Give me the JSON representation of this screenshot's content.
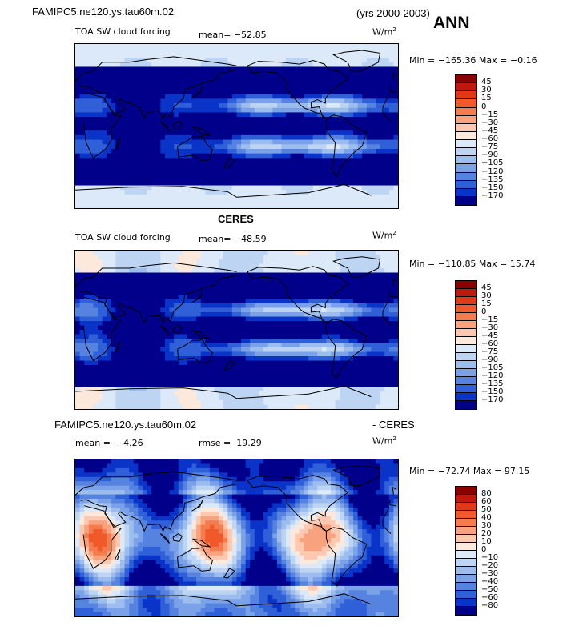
{
  "header": {
    "case_name": "FAMIPC5.ne120.ys.tau60m.02",
    "years": "(yrs 2000-2003)",
    "season": "ANN"
  },
  "panels": [
    {
      "id": "model",
      "title": "",
      "variable": "TOA SW cloud forcing",
      "mean_label": "mean=",
      "mean_value": "−52.85",
      "units": "W/m",
      "units_sup": "2",
      "minmax": "Min = −165.36 Max =  −0.16",
      "levels": [
        "45",
        "30",
        "15",
        "0",
        "−15",
        "−30",
        "−45",
        "−60",
        "−75",
        "−90",
        "−105",
        "−120",
        "−135",
        "−150",
        "−170"
      ]
    },
    {
      "id": "obs",
      "title": "CERES",
      "variable": "TOA SW cloud forcing",
      "mean_label": "mean=",
      "mean_value": "−48.59",
      "units": "W/m",
      "units_sup": "2",
      "minmax": "Min = −110.85 Max =  15.74",
      "levels": [
        "45",
        "30",
        "15",
        "0",
        "−15",
        "−30",
        "−45",
        "−60",
        "−75",
        "−90",
        "−105",
        "−120",
        "−135",
        "−150",
        "−170"
      ]
    },
    {
      "id": "diff",
      "title_left": "FAMIPC5.ne120.ys.tau60m.02",
      "title_right": "- CERES",
      "mean_label": "mean =",
      "mean_value": "−4.26",
      "rmse_label": "rmse =",
      "rmse_value": "19.29",
      "units": "W/m",
      "units_sup": "2",
      "minmax": "Min = −72.74 Max =  97.15",
      "levels": [
        "80",
        "60",
        "50",
        "40",
        "30",
        "20",
        "10",
        "0",
        "−10",
        "−20",
        "−30",
        "−40",
        "−50",
        "−60",
        "−80"
      ]
    }
  ],
  "colors": {
    "scale": [
      "#8b0000",
      "#c0180e",
      "#e03818",
      "#f05a2a",
      "#f47c4e",
      "#f9a27e",
      "#fcc8b0",
      "#fde8dc",
      "#dce9f8",
      "#bdd5f3",
      "#9dbdef",
      "#7ba2e8",
      "#5682e0",
      "#3060d8",
      "#0a34c8",
      "#00008b"
    ],
    "coast": "#000000"
  },
  "chart_data": [
    {
      "type": "heatmap",
      "title": "TOA SW cloud forcing",
      "subtitle": "FAMIPC5.ne120.ys.tau60m.02 (yrs 2000-2003) ANN",
      "units": "W/m2",
      "mean": -52.85,
      "min": -165.36,
      "max": -0.16,
      "contour_levels": [
        45,
        30,
        15,
        0,
        -15,
        -30,
        -45,
        -60,
        -75,
        -90,
        -105,
        -120,
        -135,
        -150,
        -170
      ]
    },
    {
      "type": "heatmap",
      "title": "TOA SW cloud forcing",
      "subtitle": "CERES",
      "units": "W/m2",
      "mean": -48.59,
      "min": -110.85,
      "max": 15.74,
      "contour_levels": [
        45,
        30,
        15,
        0,
        -15,
        -30,
        -45,
        -60,
        -75,
        -90,
        -105,
        -120,
        -135,
        -150,
        -170
      ]
    },
    {
      "type": "heatmap",
      "title": "FAMIPC5.ne120.ys.tau60m.02 - CERES",
      "units": "W/m2",
      "mean": -4.26,
      "rmse": 19.29,
      "min": -72.74,
      "max": 97.15,
      "contour_levels": [
        80,
        60,
        50,
        40,
        30,
        20,
        10,
        0,
        -10,
        -20,
        -30,
        -40,
        -50,
        -60,
        -80
      ]
    }
  ]
}
